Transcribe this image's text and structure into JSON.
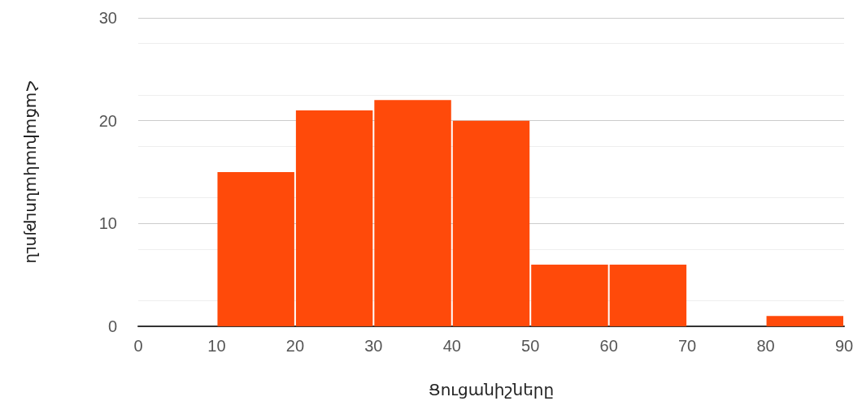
{
  "chart_data": {
    "type": "histogram",
    "xlabel": "Ցուցանիշները",
    "ylabel": "Հաճախականություն",
    "bins": [
      10,
      20,
      30,
      40,
      50,
      60,
      70,
      80,
      90
    ],
    "values": [
      15,
      21,
      22,
      20,
      6,
      6,
      0,
      1
    ],
    "color": "#ff4a0a",
    "xlim": [
      0,
      90
    ],
    "xticks": [
      0,
      10,
      20,
      30,
      40,
      50,
      60,
      70,
      80,
      90
    ],
    "ylim": [
      0,
      30
    ],
    "yticks": [
      0,
      10,
      20,
      30
    ],
    "grid": "y"
  }
}
